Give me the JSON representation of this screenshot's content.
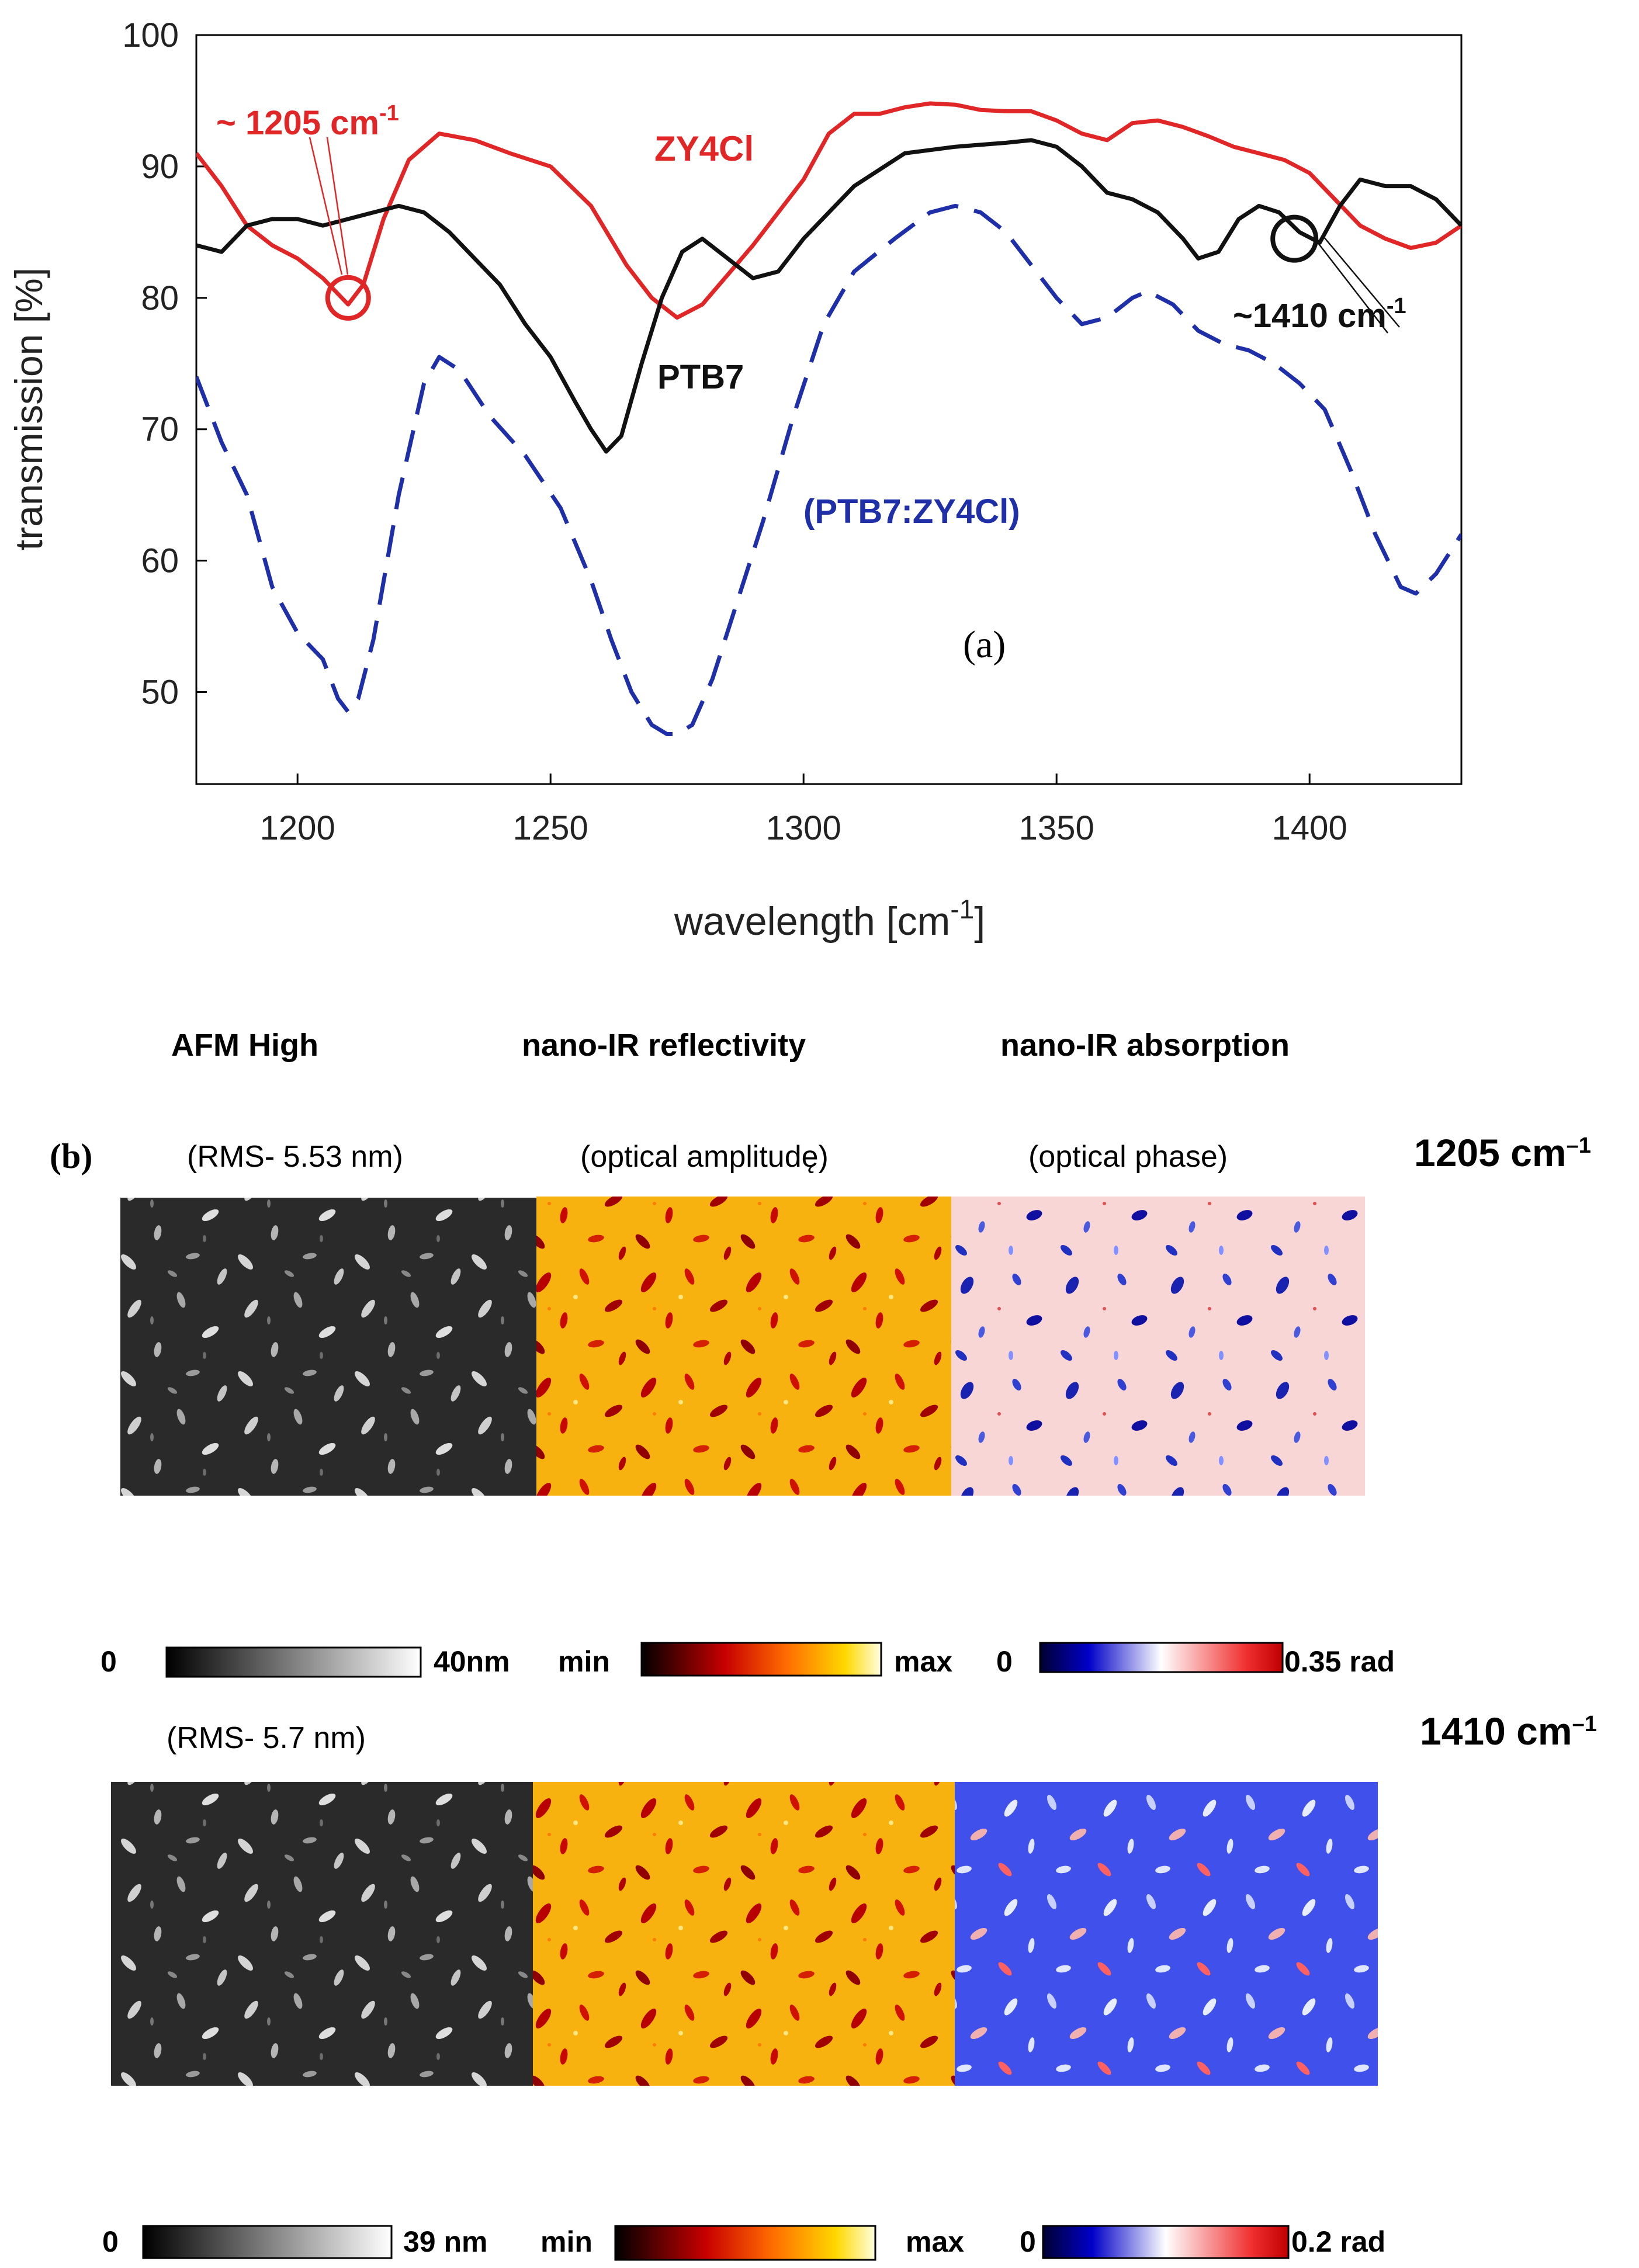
{
  "chart_data": {
    "type": "line",
    "title": "",
    "xlabel": "wavelength [cm-1]",
    "ylabel": "transmission [%]",
    "xlim": [
      1180,
      1430
    ],
    "ylim": [
      43,
      100
    ],
    "xticks": [
      1200,
      1250,
      1300,
      1350,
      1400
    ],
    "yticks": [
      50,
      60,
      70,
      80,
      90,
      100
    ],
    "grid": false,
    "panel_label": "(a)",
    "series": [
      {
        "name": "ZY4Cl",
        "style": "solid",
        "color": "#e02626",
        "x": [
          1180,
          1185,
          1190,
          1195,
          1200,
          1205,
          1210,
          1213,
          1217,
          1222,
          1228,
          1235,
          1242,
          1250,
          1258,
          1265,
          1270,
          1275,
          1280,
          1290,
          1300,
          1305,
          1310,
          1315,
          1320,
          1325,
          1330,
          1335,
          1340,
          1345,
          1350,
          1355,
          1360,
          1365,
          1370,
          1375,
          1380,
          1385,
          1390,
          1395,
          1400,
          1405,
          1410,
          1415,
          1420,
          1425,
          1430
        ],
        "y": [
          91,
          88.5,
          85.5,
          84,
          83,
          81.5,
          79.5,
          81,
          86,
          90.5,
          92.5,
          92,
          91,
          90,
          87,
          82.5,
          80,
          78.5,
          79.5,
          84,
          89,
          92.5,
          94,
          94,
          94.5,
          94.8,
          94.7,
          94.3,
          94.2,
          94.2,
          93.5,
          92.5,
          92,
          93.3,
          93.5,
          93,
          92.3,
          91.5,
          91,
          90.5,
          89.5,
          87.5,
          85.5,
          84.5,
          83.8,
          84.2,
          85.5
        ]
      },
      {
        "name": "PTB7",
        "style": "solid",
        "color": "#111111",
        "x": [
          1180,
          1185,
          1190,
          1195,
          1200,
          1205,
          1210,
          1215,
          1220,
          1225,
          1230,
          1235,
          1240,
          1245,
          1250,
          1255,
          1258,
          1261,
          1264,
          1268,
          1272,
          1276,
          1280,
          1285,
          1290,
          1295,
          1300,
          1310,
          1320,
          1330,
          1340,
          1345,
          1350,
          1355,
          1360,
          1365,
          1370,
          1375,
          1378,
          1382,
          1386,
          1390,
          1394,
          1398,
          1402,
          1406,
          1410,
          1415,
          1420,
          1425,
          1430
        ],
        "y": [
          84,
          83.5,
          85.5,
          86,
          86,
          85.5,
          86,
          86.5,
          87,
          86.5,
          85,
          83,
          81,
          78,
          75.5,
          72,
          70,
          68.3,
          69.5,
          75,
          80,
          83.5,
          84.5,
          83,
          81.5,
          82,
          84.5,
          88.5,
          91,
          91.5,
          91.8,
          92,
          91.5,
          90,
          88,
          87.5,
          86.5,
          84.5,
          83,
          83.5,
          86,
          87,
          86.5,
          85,
          84.2,
          87,
          89,
          88.5,
          88.5,
          87.5,
          85.5
        ]
      },
      {
        "name": "(PTB7:ZY4Cl)",
        "style": "dashed",
        "color": "#1f2fa8",
        "x": [
          1180,
          1185,
          1190,
          1195,
          1200,
          1205,
          1208,
          1210,
          1212,
          1215,
          1220,
          1225,
          1228,
          1232,
          1238,
          1245,
          1252,
          1258,
          1262,
          1266,
          1270,
          1273,
          1275,
          1278,
          1282,
          1287,
          1292,
          1298,
          1304,
          1310,
          1318,
          1325,
          1330,
          1335,
          1340,
          1345,
          1350,
          1355,
          1360,
          1365,
          1368,
          1373,
          1378,
          1383,
          1388,
          1393,
          1398,
          1403,
          1408,
          1413,
          1418,
          1421,
          1425,
          1430
        ],
        "y": [
          74,
          69,
          65,
          58,
          54.5,
          52.5,
          49.5,
          48.5,
          49.5,
          54,
          65,
          73.5,
          75.5,
          74.5,
          71,
          68,
          64,
          58.5,
          54,
          50,
          47.5,
          46.8,
          46.8,
          47.5,
          51,
          57,
          63,
          71,
          78,
          82,
          84.5,
          86.5,
          87,
          86.5,
          85,
          82.5,
          80,
          78,
          78.5,
          80,
          80.5,
          79.5,
          77.5,
          76.5,
          76,
          75,
          73.5,
          71.5,
          67,
          62,
          58,
          57.5,
          59,
          62
        ]
      }
    ],
    "annotations": [
      {
        "text": "~ 1205 cm",
        "sup": "-1",
        "color": "#e02626",
        "marker": "circle",
        "marker_x": 1210,
        "marker_y": 80
      },
      {
        "text": "ZY4Cl",
        "color": "#e02626"
      },
      {
        "text": "PTB7",
        "color": "#111111"
      },
      {
        "text": "(PTB7:ZY4Cl)",
        "color": "#1f2fa8"
      },
      {
        "text": "~1410 cm",
        "sup": "-1",
        "color": "#111111",
        "marker": "circle",
        "marker_x": 1397,
        "marker_y": 84.5
      }
    ]
  },
  "panel_b": {
    "label": "(b)",
    "column_headers": [
      "AFM High",
      "nano-IR reflectivity",
      "nano-IR absorption"
    ],
    "rows": [
      {
        "wavenumber": "1205 cm",
        "wavenumber_sup": "–1",
        "rms": "(RMS- 5.53 nm)",
        "amp_label": "(optical amplitudę)",
        "phase_label": "(optical phase)",
        "colorbars": {
          "afm_min": "0",
          "afm_max": "40nm",
          "amp_min": "min",
          "amp_max": "max",
          "phase_min": "0",
          "phase_max": "0.35 rad"
        }
      },
      {
        "wavenumber": "1410 cm",
        "wavenumber_sup": "–1",
        "rms": "(RMS- 5.7 nm)",
        "colorbars": {
          "afm_min": "0",
          "afm_max": "39 nm",
          "amp_min": "min",
          "amp_max": "max",
          "phase_min": "0",
          "phase_max": "0.2 rad"
        }
      }
    ]
  },
  "colors": {
    "zy4cl": "#e02626",
    "ptb7": "#111111",
    "blend": "#1f2fa8"
  }
}
